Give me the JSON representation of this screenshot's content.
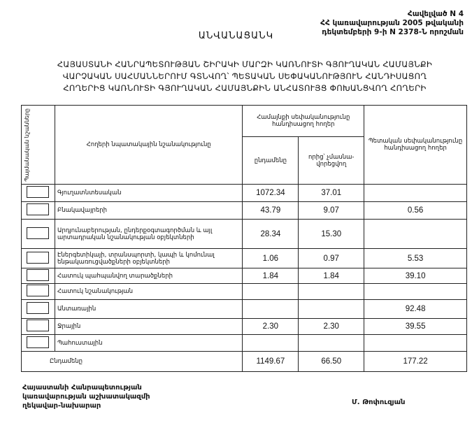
{
  "annex": {
    "line1": "Հավելված N 4",
    "line2": "ՀՀ կառավարության 2005 թվականի",
    "line3": "դեկտեմբերի 9-ի N 2378-Ն որոշման"
  },
  "title": "ԱՆՎԱՆԱՑԱՆԿ",
  "subtitle": {
    "line1": "ՀԱՅԱՍՏԱՆԻ ՀԱՆՐԱՊԵՏՈՒԹՅԱՆ ՇԻՐԱԿԻ ՄԱՐԶԻ ԿԱՌՆՈՒՏԻ ԳՅՈՒՂԱԿԱՆ ՀԱՄԱՅՆՔԻ",
    "line2": "ՎԱՐՉԱԿԱՆ ՍԱՀՄԱՆՆԵՐՈՒՄ ԳՏՆՎՈՂ՝ ՊԵՏԱԿԱՆ ՍԵՓԱԿԱՆՈՒԹՅՈՒՆ ՀԱՆԴԻՍԱՑՈՂ",
    "line3": "ՀՈՂԵՐԻՑ ԿԱՌՆՈՒՏԻ ԳՅՈՒՂԱԿԱՆ ՀԱՄԱՅՆՔԻՆ ԱՆՀԱՏՈՒՅՑ ՓՈԽԱՆՑՎՈՂ ՀՈՂԵՐԻ"
  },
  "table": {
    "headers": {
      "symbols": "Պայմանական նշանները",
      "purpose": "Հողերի նպատակային նշանակությունը",
      "community": "Համայնքի սեփականությունը հանդիսացող հողեր",
      "total": "ընդամենը",
      "non_privatized": "որից՝ չմասնա-վորեցվող",
      "state": "Պետական սեփականությունը հանդիսացող հողեր"
    },
    "rows": [
      {
        "purpose": "Գյուղատնտեսական",
        "total": "1072.34",
        "non_privatized": "37.01",
        "state": ""
      },
      {
        "purpose": "Բնակավայրերի",
        "total": "43.79",
        "non_privatized": "9.07",
        "state": "0.56"
      },
      {
        "purpose": "Արդյունաբերության, ընդերքօգտագործման և այլ արտադրական նշանակության օբյեկտների",
        "total": "28.34",
        "non_privatized": "15.30",
        "state": ""
      },
      {
        "purpose": "Էներգետիկայի, տրանսպորտի, կապի և կոմունալ ենթակառուցվածքների օբյեկտների",
        "total": "1.06",
        "non_privatized": "0.97",
        "state": "5.53"
      },
      {
        "purpose": "Հատուկ պահպանվող տարածքների",
        "total": "1.84",
        "non_privatized": "1.84",
        "state": "39.10"
      },
      {
        "purpose": "Հատուկ նշանակության",
        "total": "",
        "non_privatized": "",
        "state": ""
      },
      {
        "purpose": "Անտառային",
        "total": "",
        "non_privatized": "",
        "state": "92.48"
      },
      {
        "purpose": "Ջրային",
        "total": "2.30",
        "non_privatized": "2.30",
        "state": "39.55"
      },
      {
        "purpose": "Պահուստային",
        "total": "",
        "non_privatized": "",
        "state": ""
      }
    ],
    "totals": {
      "label": "Ընդամենը",
      "total": "1149.67",
      "non_privatized": "66.50",
      "state": "177.22"
    }
  },
  "footer": {
    "position_line1": "Հայաստանի Հանրապետության",
    "position_line2": "կառավարության աշխատակազմի",
    "position_line3": "ղեկավար-նախարար",
    "signatory": "Մ. Թոփուզյան"
  }
}
